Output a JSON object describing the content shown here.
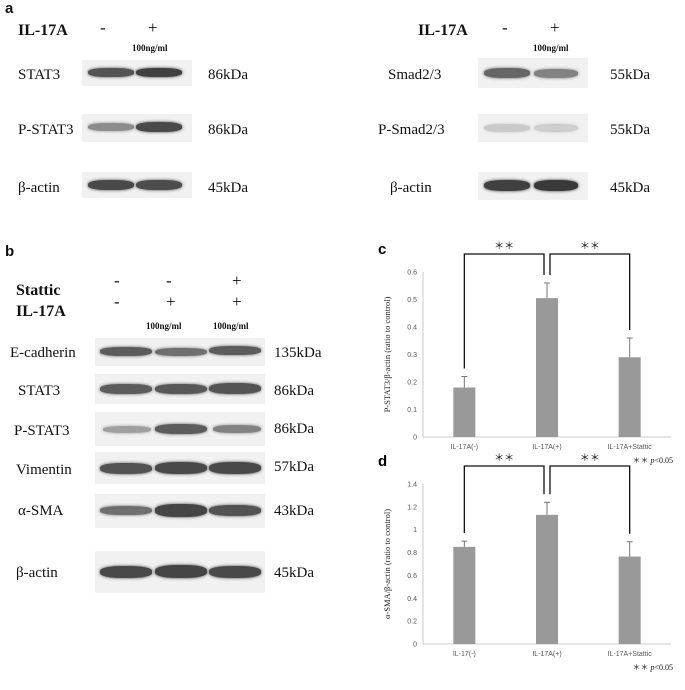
{
  "panel_a": {
    "letter": "a",
    "left": {
      "treatment": {
        "label": "IL-17A",
        "signs": [
          "-",
          "+"
        ],
        "conc": "100ng/ml"
      },
      "rows": [
        {
          "protein": "STAT3",
          "kda": "86kDa",
          "band": [
            0.75,
            0.85
          ]
        },
        {
          "protein": "P-STAT3",
          "kda": "86kDa",
          "band": [
            0.45,
            0.8
          ]
        },
        {
          "protein": "β-actin",
          "kda": "45kDa",
          "band": [
            0.8,
            0.78
          ]
        }
      ]
    },
    "right": {
      "treatment": {
        "label": "IL-17A",
        "signs": [
          "-",
          "+"
        ],
        "conc": "100ng/ml"
      },
      "rows": [
        {
          "protein": "Smad2/3",
          "kda": "55kDa",
          "band": [
            0.65,
            0.5
          ]
        },
        {
          "protein": "P-Smad2/3",
          "kda": "55kDa",
          "band": [
            0.12,
            0.1
          ]
        },
        {
          "protein": "β-actin",
          "kda": "45kDa",
          "band": [
            0.85,
            0.88
          ]
        }
      ]
    }
  },
  "panel_b": {
    "letter": "b",
    "treatments": [
      {
        "label": "Stattic",
        "signs": [
          "-",
          "-",
          "+"
        ]
      },
      {
        "label": "IL-17A",
        "signs": [
          "-",
          "+",
          "+"
        ],
        "conc": [
          "",
          "100ng/ml",
          "100ng/ml"
        ]
      }
    ],
    "rows": [
      {
        "protein": "E-cadherin",
        "kda": "135kDa",
        "band": [
          0.7,
          0.6,
          0.7
        ]
      },
      {
        "protein": "STAT3",
        "kda": "86kDa",
        "band": [
          0.7,
          0.72,
          0.74
        ]
      },
      {
        "protein": "P-STAT3",
        "kda": "86kDa",
        "band": [
          0.35,
          0.7,
          0.5
        ]
      },
      {
        "protein": "Vimentin",
        "kda": "57kDa",
        "band": [
          0.75,
          0.8,
          0.8
        ]
      },
      {
        "protein": "α-SMA",
        "kda": "43kDa",
        "band": [
          0.6,
          0.82,
          0.75
        ]
      },
      {
        "protein": "β-actin",
        "kda": "45kDa",
        "band": [
          0.8,
          0.82,
          0.8
        ]
      }
    ]
  },
  "chart_data": [
    {
      "panel": "c",
      "type": "bar",
      "categories": [
        "IL-17A(-)",
        "IL-17A(+)",
        "IL-17A+Stattic"
      ],
      "values": [
        0.18,
        0.505,
        0.29
      ],
      "errors": [
        0.04,
        0.055,
        0.07
      ],
      "ylabel": "P-STAT3/β-actin (ratio to control)",
      "ylim": [
        0,
        0.6
      ],
      "yticks": [
        "0",
        "0.1",
        "0.2",
        "0.3",
        "0.4",
        "0.5",
        "0.6"
      ],
      "grid": false,
      "bar_color": "#999999",
      "significance": [
        {
          "from": 0,
          "to": 1,
          "label": "＊＊"
        },
        {
          "from": 1,
          "to": 2,
          "label": "＊＊"
        }
      ],
      "note": {
        "stars": "＊＊",
        "p": "p",
        "text": "<0.05"
      }
    },
    {
      "panel": "d",
      "type": "bar",
      "categories": [
        "IL-17(-)",
        "IL-17A(+)",
        "IL-17A+Stattic"
      ],
      "values": [
        0.85,
        1.13,
        0.765
      ],
      "errors": [
        0.05,
        0.11,
        0.13
      ],
      "ylabel": "α-SMA/β-actin (ratio to control)",
      "ylim": [
        0,
        1.4
      ],
      "yticks": [
        "0",
        "0.2",
        "0.4",
        "0.6",
        "0.8",
        "1",
        "1.2",
        "1.4"
      ],
      "grid": false,
      "bar_color": "#999999",
      "significance": [
        {
          "from": 0,
          "to": 1,
          "label": "＊＊"
        },
        {
          "from": 1,
          "to": 2,
          "label": "＊＊"
        }
      ],
      "note": {
        "stars": "＊＊",
        "p": "p",
        "text": "<0.05"
      }
    }
  ]
}
